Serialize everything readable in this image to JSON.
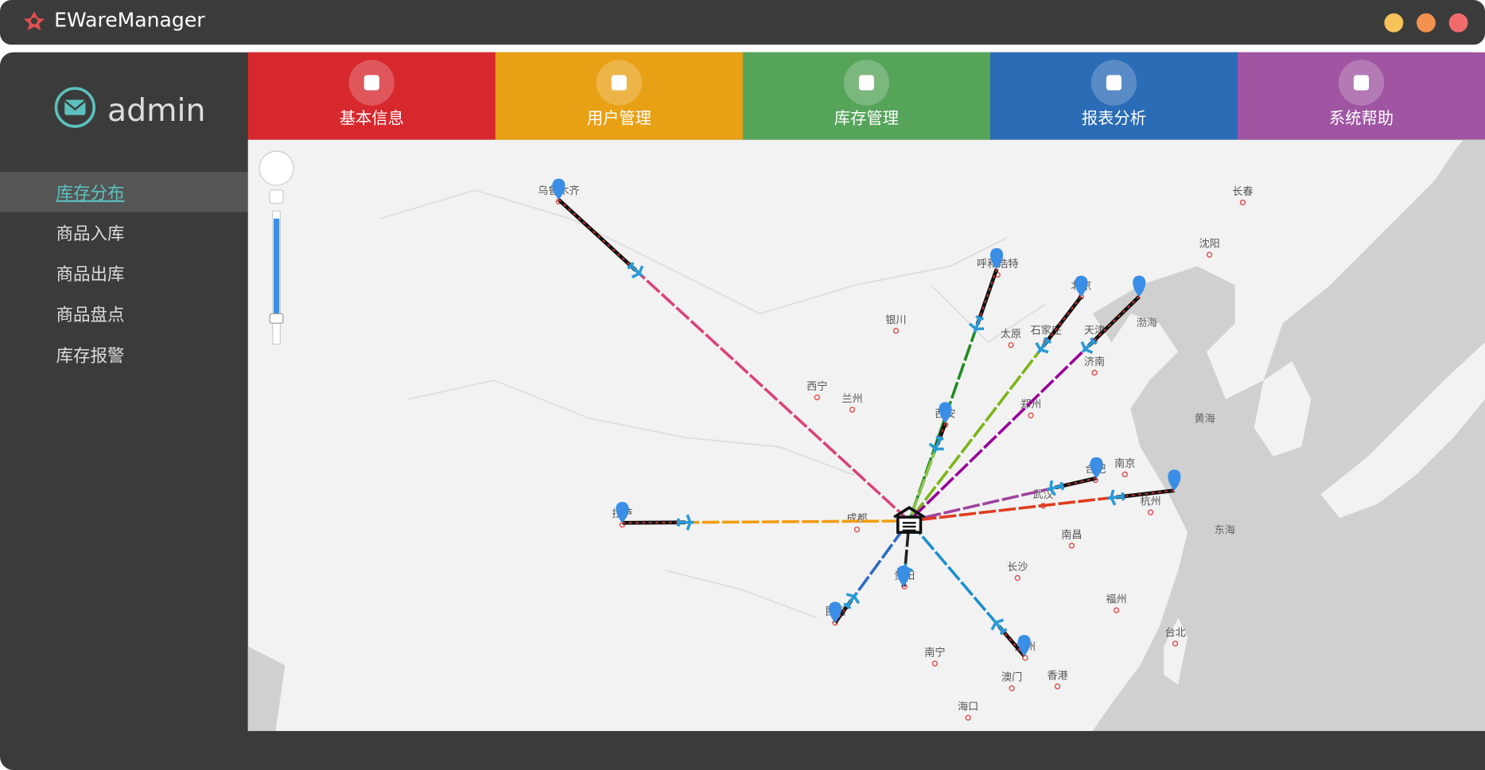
{
  "window": {
    "title": "EWareManager"
  },
  "user": {
    "name": "admin"
  },
  "sidebar": {
    "items": [
      "库存分布",
      "商品入库",
      "商品出库",
      "商品盘点",
      "库存报警"
    ]
  },
  "tabs": [
    "基本信息",
    "用户管理",
    "库存管理",
    "报表分析",
    "系统帮助"
  ],
  "map": {
    "labels": [
      "乌鲁木齐",
      "呼和浩特",
      "北京",
      "天津",
      "渤海",
      "长春",
      "沈阳",
      "银川",
      "太原",
      "石家庄",
      "济南",
      "西宁",
      "兰州",
      "西安",
      "郑州",
      "黄海",
      "合肥",
      "南京",
      "武汉",
      "杭州",
      "拉萨",
      "成都",
      "东海",
      "南昌",
      "长沙",
      "贵阳",
      "福州",
      "昆明",
      "台北",
      "广州",
      "南宁",
      "澳门",
      "香港",
      "海口"
    ]
  }
}
